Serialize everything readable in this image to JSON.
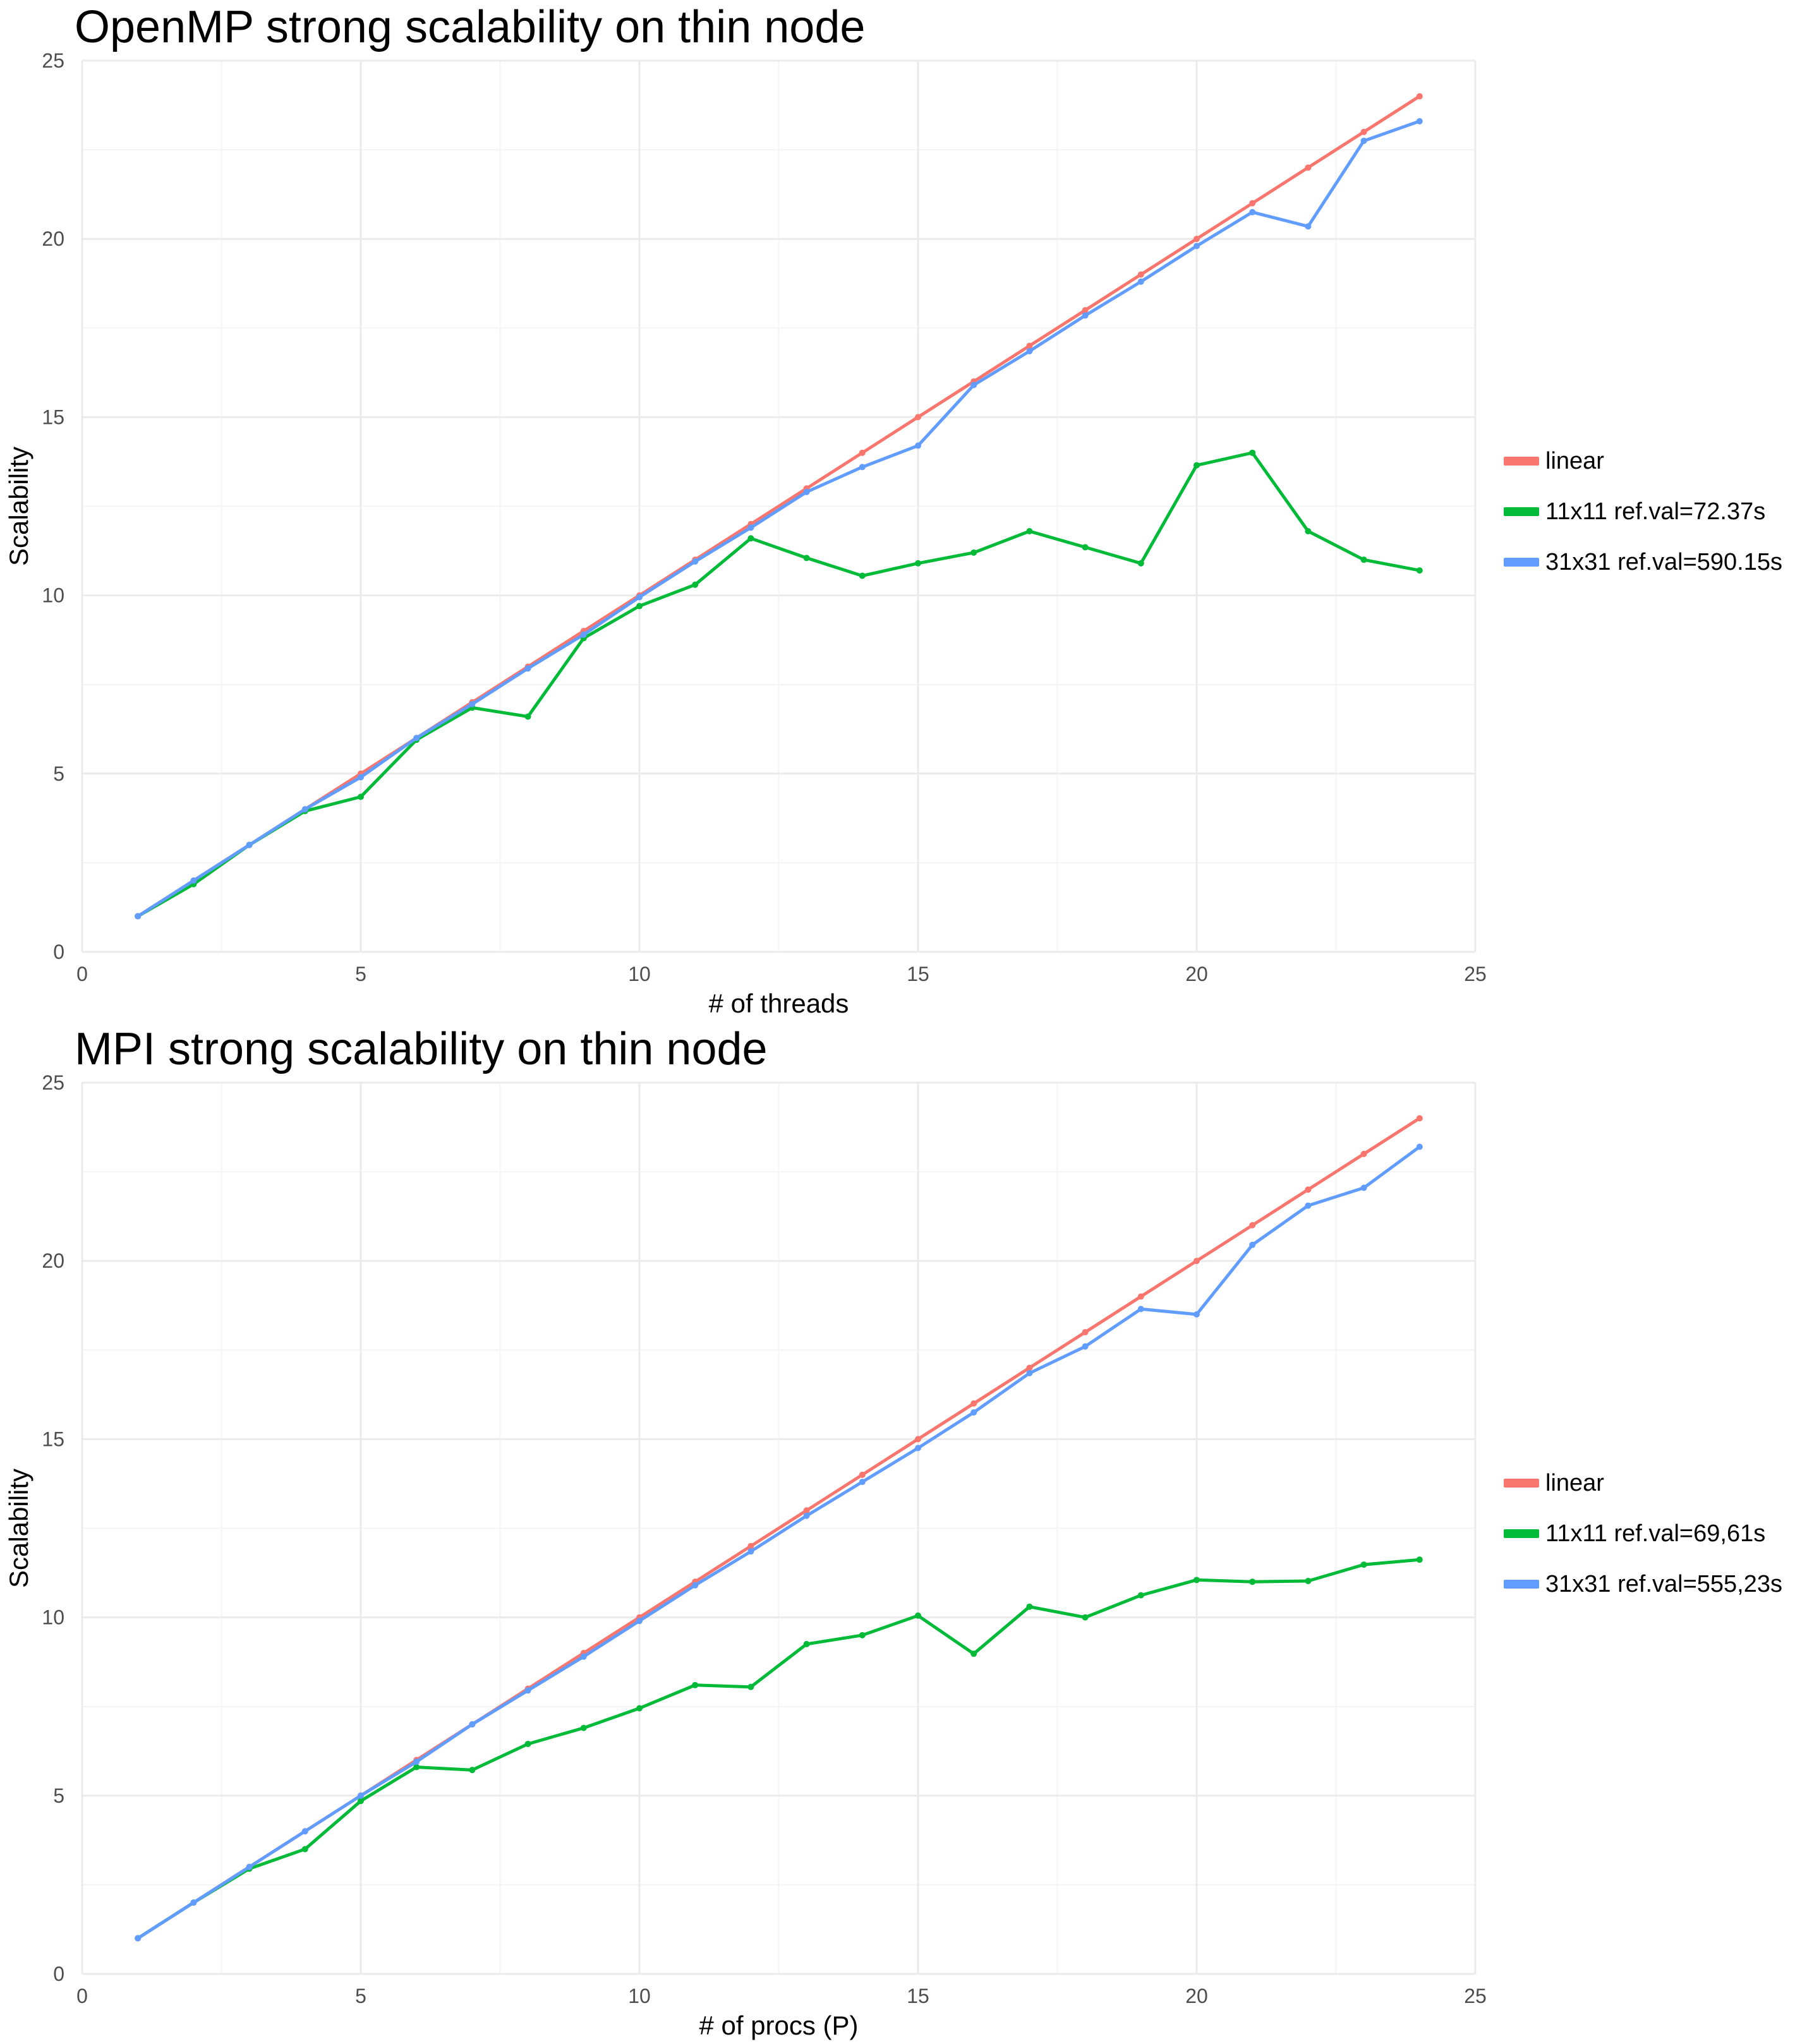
{
  "colors": {
    "linear": "#F8766D",
    "small": "#00BA38",
    "large": "#619CFF",
    "grid_major": "#EBEBEB",
    "grid_minor": "#F4F4F4",
    "tick_text": "#4D4D4D"
  },
  "chart_data": [
    {
      "type": "line",
      "title": "OpenMP strong scalability on thin node",
      "xlabel": "# of threads",
      "ylabel": "Scalability",
      "xlim": [
        0,
        25
      ],
      "ylim": [
        0,
        25
      ],
      "xticks": [
        0,
        5,
        10,
        15,
        20,
        25
      ],
      "yticks": [
        0,
        5,
        10,
        15,
        20,
        25
      ],
      "grid": true,
      "legend_position": "right",
      "x": [
        1,
        2,
        3,
        4,
        5,
        6,
        7,
        8,
        9,
        10,
        11,
        12,
        13,
        14,
        15,
        16,
        17,
        18,
        19,
        20,
        21,
        22,
        23,
        24
      ],
      "series": [
        {
          "name": "linear",
          "color_key": "linear",
          "values": [
            1,
            2,
            3,
            4,
            5,
            6,
            7,
            8,
            9,
            10,
            11,
            12,
            13,
            14,
            15,
            16,
            17,
            18,
            19,
            20,
            21,
            22,
            23,
            24
          ]
        },
        {
          "name": "11x11 ref.val=72.37s",
          "color_key": "small",
          "values": [
            1,
            1.9,
            3,
            3.95,
            4.35,
            5.95,
            6.85,
            6.6,
            8.8,
            9.7,
            10.3,
            11.6,
            11.05,
            10.55,
            10.9,
            11.2,
            11.8,
            11.35,
            10.9,
            13.65,
            14.0,
            11.8,
            11.0,
            10.7
          ]
        },
        {
          "name": "31x31 ref.val=590.15s",
          "color_key": "large",
          "values": [
            1,
            2,
            3,
            4,
            4.9,
            6,
            6.95,
            7.95,
            8.9,
            9.95,
            10.95,
            11.9,
            12.9,
            13.6,
            14.2,
            15.9,
            16.85,
            17.85,
            18.8,
            19.8,
            20.75,
            20.35,
            22.75,
            23.3
          ]
        }
      ]
    },
    {
      "type": "line",
      "title": "MPI strong scalability on thin node",
      "xlabel": "# of procs (P)",
      "ylabel": "Scalability",
      "xlim": [
        0,
        25
      ],
      "ylim": [
        0,
        25
      ],
      "xticks": [
        0,
        5,
        10,
        15,
        20,
        25
      ],
      "yticks": [
        0,
        5,
        10,
        15,
        20,
        25
      ],
      "grid": true,
      "legend_position": "right",
      "x": [
        1,
        2,
        3,
        4,
        5,
        6,
        7,
        8,
        9,
        10,
        11,
        12,
        13,
        14,
        15,
        16,
        17,
        18,
        19,
        20,
        21,
        22,
        23,
        24
      ],
      "series": [
        {
          "name": "linear",
          "color_key": "linear",
          "values": [
            1,
            2,
            3,
            4,
            5,
            6,
            7,
            8,
            9,
            10,
            11,
            12,
            13,
            14,
            15,
            16,
            17,
            18,
            19,
            20,
            21,
            22,
            23,
            24
          ]
        },
        {
          "name": "11x11 ref.val=69,61s",
          "color_key": "small",
          "values": [
            1,
            2,
            2.95,
            3.5,
            4.85,
            5.8,
            5.72,
            6.45,
            6.9,
            7.45,
            8.1,
            8.05,
            9.25,
            9.5,
            10.05,
            8.98,
            10.3,
            10.0,
            10.62,
            11.05,
            11.0,
            11.02,
            11.48,
            11.62
          ]
        },
        {
          "name": "31x31 ref.val=555,23s",
          "color_key": "large",
          "values": [
            1,
            2,
            3,
            4,
            5,
            5.95,
            7,
            7.95,
            8.9,
            9.9,
            10.9,
            11.85,
            12.85,
            13.8,
            14.75,
            15.75,
            16.85,
            17.6,
            18.65,
            18.5,
            20.45,
            21.55,
            22.05,
            23.2
          ]
        }
      ]
    }
  ]
}
